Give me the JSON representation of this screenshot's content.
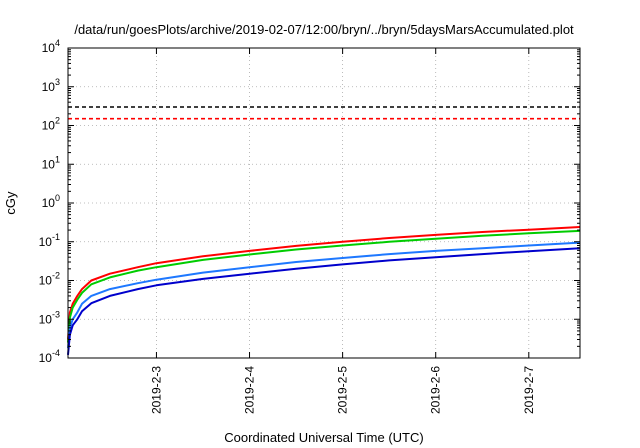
{
  "chart_data": {
    "type": "line",
    "title": "/data/run/goesPlots/archive/2019-02-07/12:00/bryn/../bryn/5daysMarsAccumulated.plot",
    "xlabel": "Coordinated Universal Time (UTC)",
    "ylabel": "cGy",
    "yscale": "log",
    "ylim": [
      0.0001,
      10000
    ],
    "xlim": [
      2.05,
      7.55
    ],
    "x_ticks": [
      {
        "value": 3,
        "label": "2019-2-3"
      },
      {
        "value": 4,
        "label": "2019-2-4"
      },
      {
        "value": 5,
        "label": "2019-2-5"
      },
      {
        "value": 6,
        "label": "2019-2-6"
      },
      {
        "value": 7,
        "label": "2019-2-7"
      }
    ],
    "y_ticks": [
      {
        "value": 0.0001,
        "base": "10",
        "exp": "-4"
      },
      {
        "value": 0.001,
        "base": "10",
        "exp": "-3"
      },
      {
        "value": 0.01,
        "base": "10",
        "exp": "-2"
      },
      {
        "value": 0.1,
        "base": "10",
        "exp": "-1"
      },
      {
        "value": 1,
        "base": "10",
        "exp": "0"
      },
      {
        "value": 10,
        "base": "10",
        "exp": "1"
      },
      {
        "value": 100,
        "base": "10",
        "exp": "2"
      },
      {
        "value": 1000,
        "base": "10",
        "exp": "3"
      },
      {
        "value": 10000,
        "base": "10",
        "exp": "4"
      }
    ],
    "grid": true,
    "reference_lines": [
      {
        "y": 300,
        "color": "#000000",
        "style": "dashed"
      },
      {
        "y": 150,
        "color": "#ff0000",
        "style": "dashed"
      }
    ],
    "series": [
      {
        "color": "#ff0000",
        "x": [
          2.05,
          2.07,
          2.1,
          2.15,
          2.2,
          2.3,
          2.5,
          2.8,
          3.0,
          3.5,
          4.0,
          4.5,
          5.0,
          5.5,
          6.0,
          6.5,
          7.0,
          7.55
        ],
        "y": [
          0.0003,
          0.0015,
          0.0025,
          0.004,
          0.006,
          0.01,
          0.015,
          0.022,
          0.028,
          0.042,
          0.058,
          0.078,
          0.1,
          0.125,
          0.15,
          0.178,
          0.205,
          0.24
        ]
      },
      {
        "color": "#00cc00",
        "x": [
          2.05,
          2.07,
          2.1,
          2.15,
          2.2,
          2.3,
          2.5,
          2.8,
          3.0,
          3.5,
          4.0,
          4.5,
          5.0,
          5.5,
          6.0,
          6.5,
          7.0,
          7.55
        ],
        "y": [
          0.00025,
          0.0011,
          0.002,
          0.0032,
          0.0048,
          0.008,
          0.012,
          0.018,
          0.022,
          0.034,
          0.047,
          0.063,
          0.08,
          0.1,
          0.12,
          0.143,
          0.165,
          0.19
        ]
      },
      {
        "color": "#1e78ff",
        "x": [
          2.05,
          2.07,
          2.1,
          2.15,
          2.2,
          2.3,
          2.5,
          2.8,
          3.0,
          3.5,
          4.0,
          4.5,
          5.0,
          5.5,
          6.0,
          6.5,
          7.0,
          7.55
        ],
        "y": [
          0.00018,
          0.0006,
          0.001,
          0.0015,
          0.0025,
          0.004,
          0.006,
          0.0085,
          0.0105,
          0.016,
          0.022,
          0.03,
          0.038,
          0.048,
          0.058,
          0.068,
          0.08,
          0.095
        ]
      },
      {
        "color": "#0000cc",
        "x": [
          2.05,
          2.07,
          2.1,
          2.15,
          2.2,
          2.3,
          2.5,
          2.8,
          3.0,
          3.5,
          4.0,
          4.5,
          5.0,
          5.5,
          6.0,
          6.5,
          7.0,
          7.55
        ],
        "y": [
          0.00012,
          0.0004,
          0.0007,
          0.001,
          0.0016,
          0.0026,
          0.004,
          0.006,
          0.0075,
          0.011,
          0.015,
          0.02,
          0.026,
          0.033,
          0.04,
          0.048,
          0.057,
          0.068
        ]
      }
    ]
  }
}
